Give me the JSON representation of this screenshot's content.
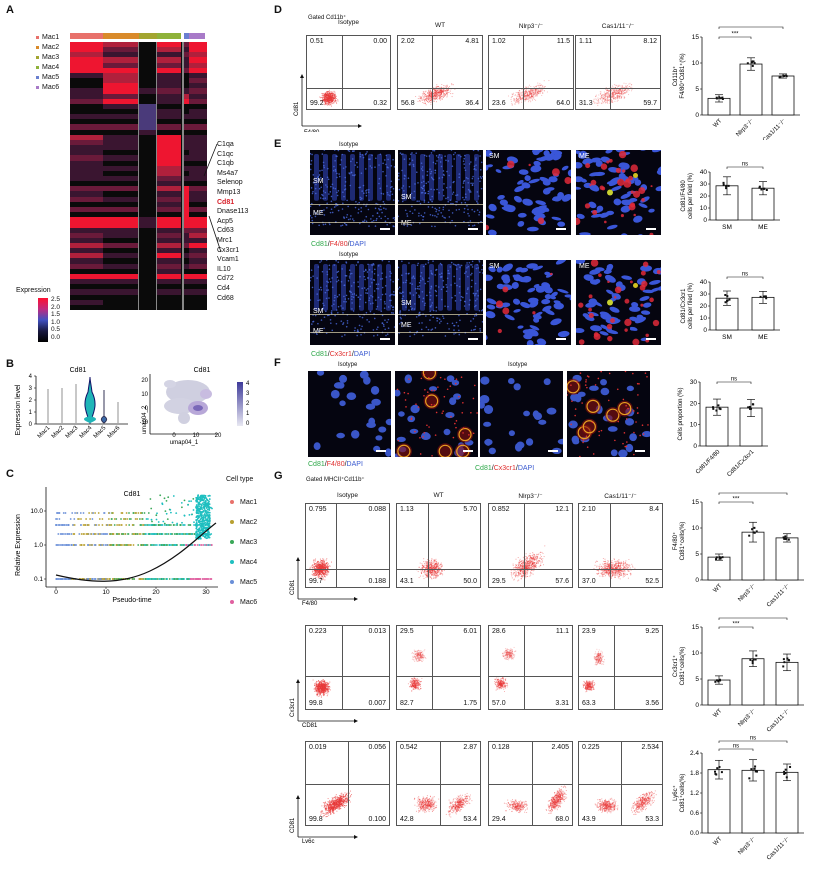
{
  "panels": {
    "A": {
      "letter": "A",
      "clusters": [
        {
          "name": "Mac1",
          "color": "#e8716b"
        },
        {
          "name": "Mac2",
          "color": "#d98a2a"
        },
        {
          "name": "Mac3",
          "color": "#a3a530"
        },
        {
          "name": "Mac4",
          "color": "#8fb23a"
        },
        {
          "name": "Mac5",
          "color": "#6a7fd0"
        },
        {
          "name": "Mac6",
          "color": "#a87ac8"
        }
      ],
      "genes": [
        "C1qa",
        "C1qc",
        "C1qb",
        "Ms4a7",
        "Selenop",
        "Mmp13",
        "Cd81",
        "Dnase113",
        "Acp5",
        "Cd63",
        "Mrc1",
        "Cx3cr1",
        "Vcam1",
        "IL10",
        "Cd72",
        "Cd4",
        "Cd68"
      ],
      "highlight_gene": "Cd81",
      "legend_title": "Expression",
      "legend_ticks": [
        "2.5",
        "2.0",
        "1.5",
        "1.0",
        "0.5",
        "0.0"
      ]
    },
    "B": {
      "letter": "B",
      "violin_title": "Cd81",
      "violin_ylabel": "Expression level",
      "violin_yticks": [
        "4",
        "3",
        "2",
        "1",
        "0"
      ],
      "violin_categories": [
        "Mac1",
        "Mac2",
        "Mac3",
        "Mac4",
        "Mac5",
        "Mac6"
      ],
      "umap_title": "Cd81",
      "umap_xlabel": "umap04_1",
      "umap_ylabel": "umap04_2",
      "umap_xticks": [
        "0",
        "10",
        "20"
      ],
      "umap_yticks": [
        "20",
        "10",
        "0",
        "-10"
      ],
      "umap_scale": [
        "4",
        "3",
        "2",
        "1",
        "0"
      ]
    },
    "C": {
      "letter": "C",
      "title": "Cd81",
      "xlabel": "Pseudo-time",
      "ylabel": "Relative Expression",
      "xticks": [
        "0",
        "10",
        "20",
        "30"
      ],
      "yticks": [
        "10.0",
        "1.0",
        "0.1"
      ],
      "legend_title": "Cell type",
      "legend": [
        {
          "name": "Mac1",
          "color": "#e8716b"
        },
        {
          "name": "Mac2",
          "color": "#b8a030"
        },
        {
          "name": "Mac3",
          "color": "#3aa858"
        },
        {
          "name": "Mac4",
          "color": "#1fbfc0"
        },
        {
          "name": "Mac5",
          "color": "#6a8fd8"
        },
        {
          "name": "Mac6",
          "color": "#e060a0"
        }
      ]
    },
    "D": {
      "letter": "D",
      "gate": "Gated Cd11b⁺",
      "xaxis": "F4/80",
      "yaxis": "Cd81",
      "plots": [
        {
          "title": "Isotype",
          "ul": "0.51",
          "ur": "0.00",
          "ll": "99.2",
          "lr": "0.32"
        },
        {
          "title": "WT",
          "ul": "2.02",
          "ur": "4.81",
          "ll": "56.8",
          "lr": "36.4"
        },
        {
          "title": "Nlrp3⁻/⁻",
          "ul": "1.02",
          "ur": "11.5",
          "ll": "23.6",
          "lr": "64.0"
        },
        {
          "title": "Cas1/11⁻/⁻",
          "ul": "1.11",
          "ur": "8.12",
          "ll": "31.3",
          "lr": "59.7"
        }
      ]
    },
    "E": {
      "letter": "E",
      "row1_stain": [
        "Cd81",
        "/",
        "F4/80",
        "/",
        "DAPI"
      ],
      "row2_stain": [
        "Cd81",
        "/",
        "Cx3cr1",
        "/",
        "DAPI"
      ],
      "isotype": "Isotype",
      "sm": "SM",
      "me": "ME"
    },
    "F": {
      "letter": "F",
      "isotype": "Isotype",
      "stain1": [
        "Cd81",
        "/",
        "F4/80",
        "/",
        "DAPI"
      ],
      "stain2": [
        "Cd81",
        "/",
        "Cx3cr1",
        "/",
        "DAPI"
      ]
    },
    "G": {
      "letter": "G",
      "gate": "Gated MHCII⁺Cd11b⁺",
      "titles": [
        "Isotype",
        "WT",
        "Nlrp3⁻/⁻",
        "Cas1/11⁻/⁻"
      ],
      "rows": [
        {
          "xaxis": "F4/80",
          "yaxis": "CD81",
          "plots": [
            {
              "ul": "0.795",
              "ur": "0.088",
              "ll": "99.7",
              "lr": "0.188"
            },
            {
              "ul": "1.13",
              "ur": "5.70",
              "ll": "43.1",
              "lr": "50.0"
            },
            {
              "ul": "0.852",
              "ur": "12.1",
              "ll": "29.5",
              "lr": "57.6"
            },
            {
              "ul": "2.10",
              "ur": "8.4",
              "ll": "37.0",
              "lr": "52.5"
            }
          ]
        },
        {
          "xaxis": "CD81",
          "yaxis": "Cx3cr1",
          "plots": [
            {
              "ul": "0.223",
              "ur": "0.013",
              "ll": "99.8",
              "lr": "0.007"
            },
            {
              "ul": "29.5",
              "ur": "6.01",
              "ll": "82.7",
              "lr": "1.75"
            },
            {
              "ul": "28.6",
              "ur": "11.1",
              "ll": "57.0",
              "lr": "3.31"
            },
            {
              "ul": "23.9",
              "ur": "9.25",
              "ll": "63.3",
              "lr": "3.56"
            }
          ]
        },
        {
          "xaxis": "Ly6c",
          "yaxis": "CD81",
          "plots": [
            {
              "ul": "0.019",
              "ur": "0.056",
              "ll": "99.8",
              "lr": "0.100"
            },
            {
              "ul": "0.542",
              "ur": "2.87",
              "ll": "42.8",
              "lr": "53.4"
            },
            {
              "ul": "0.128",
              "ur": "2.405",
              "ll": "29.4",
              "lr": "68.0"
            },
            {
              "ul": "0.225",
              "ur": "2.534",
              "ll": "43.9",
              "lr": "53.3"
            }
          ]
        }
      ]
    }
  },
  "chart_data": [
    {
      "id": "D-bar",
      "type": "bar",
      "ylabel": "Cd11b⁺ F4/80⁺Cd81⁺(%)",
      "categories": [
        "WT",
        "Nlrp3⁻/⁻",
        "Cas1/11⁻/⁻"
      ],
      "values": [
        3.2,
        9.8,
        7.5
      ],
      "errors": [
        0.7,
        1.2,
        0.4
      ],
      "ylim": [
        0,
        15
      ],
      "yticks": [
        "0",
        "5",
        "10",
        "15"
      ],
      "significance": [
        {
          "pair": [
            0,
            1
          ],
          "label": "***"
        },
        {
          "pair": [
            0,
            2
          ],
          "label": "***"
        }
      ]
    },
    {
      "id": "E-bar1",
      "type": "bar",
      "ylabel": "Cd81/F4/80 cells per field (%)",
      "categories": [
        "SM",
        "ME"
      ],
      "values": [
        28.5,
        26.5
      ],
      "errors": [
        7.5,
        5.5
      ],
      "ylim": [
        0,
        40
      ],
      "yticks": [
        "0",
        "10",
        "20",
        "30",
        "40"
      ],
      "significance": [
        {
          "pair": [
            0,
            1
          ],
          "label": "ns"
        }
      ]
    },
    {
      "id": "E-bar2",
      "type": "bar",
      "ylabel": "Cd81/Cx3cr1 cells per filed (%)",
      "categories": [
        "SM",
        "ME"
      ],
      "values": [
        26.5,
        27.2
      ],
      "errors": [
        6.0,
        5.0
      ],
      "ylim": [
        0,
        40
      ],
      "yticks": [
        "0",
        "10",
        "20",
        "30",
        "40"
      ],
      "significance": [
        {
          "pair": [
            0,
            1
          ],
          "label": "ns"
        }
      ]
    },
    {
      "id": "F-bar",
      "type": "bar",
      "ylabel": "Cells proportion (%)",
      "categories": [
        "Cd81/F4/80",
        "Cd81/Cx3cr1"
      ],
      "values": [
        18.2,
        17.8
      ],
      "errors": [
        3.8,
        4.0
      ],
      "ylim": [
        0,
        30
      ],
      "yticks": [
        "0",
        "10",
        "20",
        "30"
      ],
      "significance": [
        {
          "pair": [
            0,
            1
          ],
          "label": "ns"
        }
      ]
    },
    {
      "id": "G-bar1",
      "type": "bar",
      "ylabel": "F4/80⁺ Cd81⁺cells(%)",
      "categories": [
        "WT",
        "Nlrp3⁻/⁻",
        "Cas1/11⁻/⁻"
      ],
      "values": [
        4.4,
        9.2,
        8.1
      ],
      "errors": [
        0.6,
        1.9,
        0.8
      ],
      "ylim": [
        0,
        15
      ],
      "yticks": [
        "0",
        "5",
        "10",
        "15"
      ],
      "significance": [
        {
          "pair": [
            0,
            1
          ],
          "label": "***"
        },
        {
          "pair": [
            0,
            2
          ],
          "label": "**"
        }
      ]
    },
    {
      "id": "G-bar2",
      "type": "bar",
      "ylabel": "Cx3cr1⁺ Cd81⁺cells(%)",
      "categories": [
        "WT",
        "Nlrp3⁻/⁻",
        "Cas1/11⁻/⁻"
      ],
      "values": [
        4.8,
        8.9,
        8.2
      ],
      "errors": [
        0.8,
        1.5,
        1.6
      ],
      "ylim": [
        0,
        15
      ],
      "yticks": [
        "0",
        "5",
        "10",
        "15"
      ],
      "significance": [
        {
          "pair": [
            0,
            1
          ],
          "label": "***"
        },
        {
          "pair": [
            0,
            2
          ],
          "label": "**"
        }
      ]
    },
    {
      "id": "G-bar3",
      "type": "bar",
      "ylabel": "Ly6c⁺ Cd81⁺cells(%)",
      "categories": [
        "WT",
        "Nlrp3⁻/⁻",
        "Cas1/11⁻/⁻"
      ],
      "values": [
        1.9,
        1.88,
        1.82
      ],
      "errors": [
        0.28,
        0.32,
        0.25
      ],
      "ylim": [
        0,
        2.4
      ],
      "yticks": [
        "0.0",
        "0.6",
        "1.2",
        "1.8",
        "2.4"
      ],
      "significance": [
        {
          "pair": [
            0,
            1
          ],
          "label": "ns"
        },
        {
          "pair": [
            0,
            2
          ],
          "label": "ns"
        }
      ]
    }
  ]
}
